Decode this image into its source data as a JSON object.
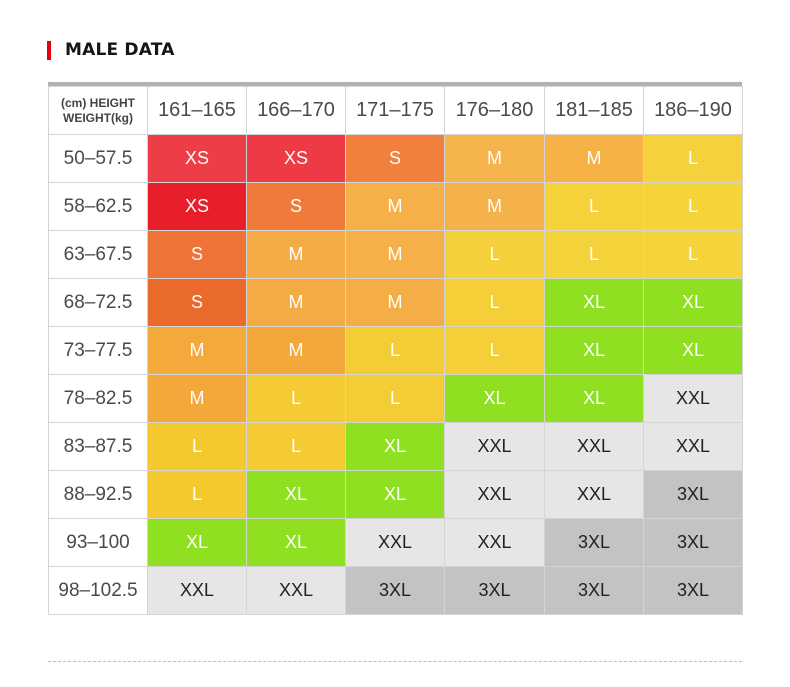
{
  "title": "MALE DATA",
  "corner": {
    "line1": "(cm) HEIGHT",
    "line2": "WEIGHT(kg)"
  },
  "heights": [
    "161–165",
    "166–170",
    "171–175",
    "176–180",
    "181–185",
    "186–190"
  ],
  "rows": [
    {
      "weight": "50–57.5",
      "sizes": [
        "XS",
        "XS",
        "S",
        "M",
        "M",
        "L"
      ]
    },
    {
      "weight": "58–62.5",
      "sizes": [
        "XS",
        "S",
        "M",
        "M",
        "L",
        "L"
      ]
    },
    {
      "weight": "63–67.5",
      "sizes": [
        "S",
        "M",
        "M",
        "L",
        "L",
        "L"
      ]
    },
    {
      "weight": "68–72.5",
      "sizes": [
        "S",
        "M",
        "M",
        "L",
        "XL",
        "XL"
      ]
    },
    {
      "weight": "73–77.5",
      "sizes": [
        "M",
        "M",
        "L",
        "L",
        "XL",
        "XL"
      ]
    },
    {
      "weight": "78–82.5",
      "sizes": [
        "M",
        "L",
        "L",
        "XL",
        "XL",
        "XXL"
      ]
    },
    {
      "weight": "83–87.5",
      "sizes": [
        "L",
        "L",
        "XL",
        "XXL",
        "XXL",
        "XXL"
      ]
    },
    {
      "weight": "88–92.5",
      "sizes": [
        "L",
        "XL",
        "XL",
        "XXL",
        "XXL",
        "3XL"
      ]
    },
    {
      "weight": "93–100",
      "sizes": [
        "XL",
        "XL",
        "XXL",
        "XXL",
        "3XL",
        "3XL"
      ]
    },
    {
      "weight": "98–102.5",
      "sizes": [
        "XXL",
        "XXL",
        "3XL",
        "3XL",
        "3XL",
        "3XL"
      ]
    }
  ],
  "colors": {
    "accent": "#e50012",
    "XL": "#8ee020",
    "XXL": "#e6e6e6",
    "3XL": "#c3c3c3"
  },
  "cell_colors": [
    [
      "#ed3d46",
      "#ed3a44",
      "#f0803c",
      "#f6b44c",
      "#f6b246",
      "#f5d23c"
    ],
    [
      "#e81f2a",
      "#ef7a3a",
      "#f5b04a",
      "#f5b24a",
      "#f5d23a",
      "#f5d43a"
    ],
    [
      "#ee7336",
      "#f5ac46",
      "#f6b048",
      "#f4d03a",
      "#f4d23a",
      "#f4d43a"
    ],
    [
      "#ea6a2c",
      "#f4ab44",
      "#f5ae46",
      "#f4cf38",
      "#8ee020",
      "#8ee020"
    ],
    [
      "#f3a93c",
      "#f3a83c",
      "#f4cd36",
      "#f4cf38",
      "#8ee020",
      "#8ee020"
    ],
    [
      "#f2a83a",
      "#f4cb34",
      "#f4cd36",
      "#8ee020",
      "#8ee020",
      "#e6e6e6"
    ],
    [
      "#f4c930",
      "#f4cb32",
      "#8ee020",
      "#e6e6e6",
      "#e6e6e6",
      "#e6e6e6"
    ],
    [
      "#f4c92e",
      "#8ee020",
      "#8ee020",
      "#e6e6e6",
      "#e6e6e6",
      "#c3c3c3"
    ],
    [
      "#8ee020",
      "#8ee020",
      "#e6e6e6",
      "#e6e6e6",
      "#c3c3c3",
      "#c3c3c3"
    ],
    [
      "#e6e6e6",
      "#e6e6e6",
      "#c3c3c3",
      "#c3c3c3",
      "#c3c3c3",
      "#c3c3c3"
    ]
  ]
}
